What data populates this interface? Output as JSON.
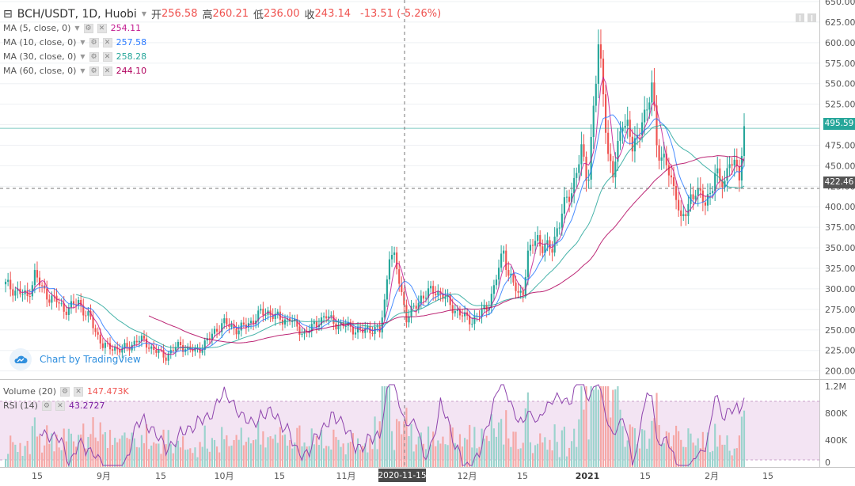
{
  "header": {
    "symbol": "BCH/USDT, 1D, Huobi",
    "open_label": "开",
    "open_value": "256.58",
    "high_label": "高",
    "high_value": "260.21",
    "low_label": "低",
    "low_value": "236.00",
    "close_label": "收",
    "close_value": "243.14",
    "change": "-13.51 (-5.26%)"
  },
  "indicators": [
    {
      "label": "MA (5, close, 0)",
      "value": "254.11",
      "color": "#c2188f"
    },
    {
      "label": "MA (10, close, 0)",
      "value": "257.58",
      "color": "#2979ff"
    },
    {
      "label": "MA (30, close, 0)",
      "value": "258.28",
      "color": "#26a69a"
    },
    {
      "label": "MA (60, close, 0)",
      "value": "244.10",
      "color": "#b0005d"
    }
  ],
  "volume_legend": {
    "label": "Volume (20)",
    "value": "147.473K"
  },
  "rsi_legend": {
    "label": "RSI (14)",
    "value": "43.2727"
  },
  "watermark": "Chart by TradingView",
  "crosshair_date": "2020-11-15",
  "last_price": "495.59",
  "crosshair_price": "422.46",
  "colors": {
    "up": "#26a69a",
    "down": "#ef5350",
    "grid": "#eef0f3",
    "ma5": "#c2188f",
    "ma10": "#2979ff",
    "ma30": "#26a69a",
    "ma60": "#b0005d",
    "rsi_band": "#f3e4f3"
  },
  "chart_data": {
    "type": "candlestick",
    "title": "BCH/USDT, 1D, Huobi",
    "price_axis": {
      "ticks": [
        "650.00",
        "625.00",
        "600.00",
        "575.00",
        "550.00",
        "525.00",
        "500.00",
        "475.00",
        "450.00",
        "425.00",
        "400.00",
        "375.00",
        "350.00",
        "325.00",
        "300.00",
        "275.00",
        "250.00",
        "225.00",
        "200.00"
      ],
      "range": [
        190,
        650
      ]
    },
    "volume_axis": {
      "ticks": [
        "1.2M",
        "800K",
        "400K",
        "0"
      ],
      "range": [
        0,
        1200000
      ]
    },
    "time_axis": {
      "ticks": [
        "15",
        "9月",
        "15",
        "10月",
        "15",
        "11月",
        "2020-11-15",
        "12月",
        "15",
        "2021",
        "15",
        "2月",
        "15"
      ]
    },
    "ohlc_close_path": [
      [
        0,
        305
      ],
      [
        3,
        300
      ],
      [
        6,
        295
      ],
      [
        9,
        290
      ],
      [
        12,
        318
      ],
      [
        15,
        300
      ],
      [
        18,
        290
      ],
      [
        21,
        285
      ],
      [
        24,
        275
      ],
      [
        27,
        278
      ],
      [
        30,
        284
      ],
      [
        33,
        270
      ],
      [
        35,
        262
      ],
      [
        37,
        248
      ],
      [
        40,
        232
      ],
      [
        42,
        228
      ],
      [
        45,
        228
      ],
      [
        48,
        226
      ],
      [
        51,
        230
      ],
      [
        54,
        238
      ],
      [
        57,
        236
      ],
      [
        60,
        228
      ],
      [
        63,
        222
      ],
      [
        66,
        218
      ],
      [
        69,
        226
      ],
      [
        72,
        232
      ],
      [
        75,
        226
      ],
      [
        78,
        224
      ],
      [
        81,
        230
      ],
      [
        84,
        240
      ],
      [
        87,
        252
      ],
      [
        90,
        258
      ],
      [
        93,
        254
      ],
      [
        96,
        250
      ],
      [
        99,
        256
      ],
      [
        102,
        262
      ],
      [
        105,
        270
      ],
      [
        108,
        272
      ],
      [
        111,
        266
      ],
      [
        114,
        262
      ],
      [
        117,
        264
      ],
      [
        120,
        252
      ],
      [
        123,
        246
      ],
      [
        126,
        252
      ],
      [
        129,
        262
      ],
      [
        132,
        266
      ],
      [
        135,
        260
      ],
      [
        138,
        255
      ],
      [
        141,
        255
      ],
      [
        144,
        250
      ],
      [
        147,
        248
      ],
      [
        149,
        252
      ],
      [
        152,
        250
      ],
      [
        154,
        248
      ],
      [
        156,
        284
      ],
      [
        158,
        345
      ],
      [
        160,
        335
      ],
      [
        162,
        310
      ],
      [
        165,
        265
      ],
      [
        168,
        275
      ],
      [
        171,
        290
      ],
      [
        174,
        295
      ],
      [
        177,
        298
      ],
      [
        180,
        292
      ],
      [
        183,
        280
      ],
      [
        186,
        272
      ],
      [
        189,
        265
      ],
      [
        192,
        262
      ],
      [
        195,
        268
      ],
      [
        198,
        278
      ],
      [
        201,
        300
      ],
      [
        203,
        325
      ],
      [
        205,
        348
      ],
      [
        207,
        318
      ],
      [
        209,
        306
      ],
      [
        211,
        292
      ],
      [
        213,
        300
      ],
      [
        215,
        340
      ],
      [
        217,
        355
      ],
      [
        219,
        362
      ],
      [
        221,
        352
      ],
      [
        223,
        350
      ],
      [
        225,
        348
      ],
      [
        227,
        375
      ],
      [
        229,
        392
      ],
      [
        231,
        408
      ],
      [
        233,
        418
      ],
      [
        235,
        448
      ],
      [
        237,
        465
      ],
      [
        239,
        438
      ],
      [
        240,
        440
      ],
      [
        242,
        525
      ],
      [
        244,
        590
      ],
      [
        246,
        540
      ],
      [
        248,
        465
      ],
      [
        250,
        440
      ],
      [
        252,
        468
      ],
      [
        254,
        510
      ],
      [
        256,
        500
      ],
      [
        258,
        470
      ],
      [
        260,
        480
      ],
      [
        262,
        515
      ],
      [
        264,
        512
      ],
      [
        266,
        548
      ],
      [
        268,
        480
      ],
      [
        270,
        460
      ],
      [
        272,
        450
      ],
      [
        274,
        430
      ],
      [
        276,
        420
      ],
      [
        278,
        380
      ],
      [
        280,
        392
      ],
      [
        282,
        412
      ],
      [
        284,
        422
      ],
      [
        286,
        410
      ],
      [
        288,
        405
      ],
      [
        290,
        420
      ],
      [
        292,
        438
      ],
      [
        294,
        430
      ],
      [
        296,
        432
      ],
      [
        298,
        460
      ],
      [
        300,
        445
      ],
      [
        302,
        440
      ],
      [
        304,
        495
      ]
    ],
    "ma_series": [
      {
        "name": "MA (5, close, 0)",
        "last": 254.11
      },
      {
        "name": "MA (10, close, 0)",
        "last": 257.58
      },
      {
        "name": "MA (30, close, 0)",
        "last": 258.28
      },
      {
        "name": "MA (60, close, 0)",
        "last": 244.1
      }
    ],
    "last_price": 495.59,
    "crosshair_price": 422.46,
    "volume_last": 147473,
    "rsi_last": 43.2727,
    "rsi_band": [
      30,
      70
    ]
  }
}
